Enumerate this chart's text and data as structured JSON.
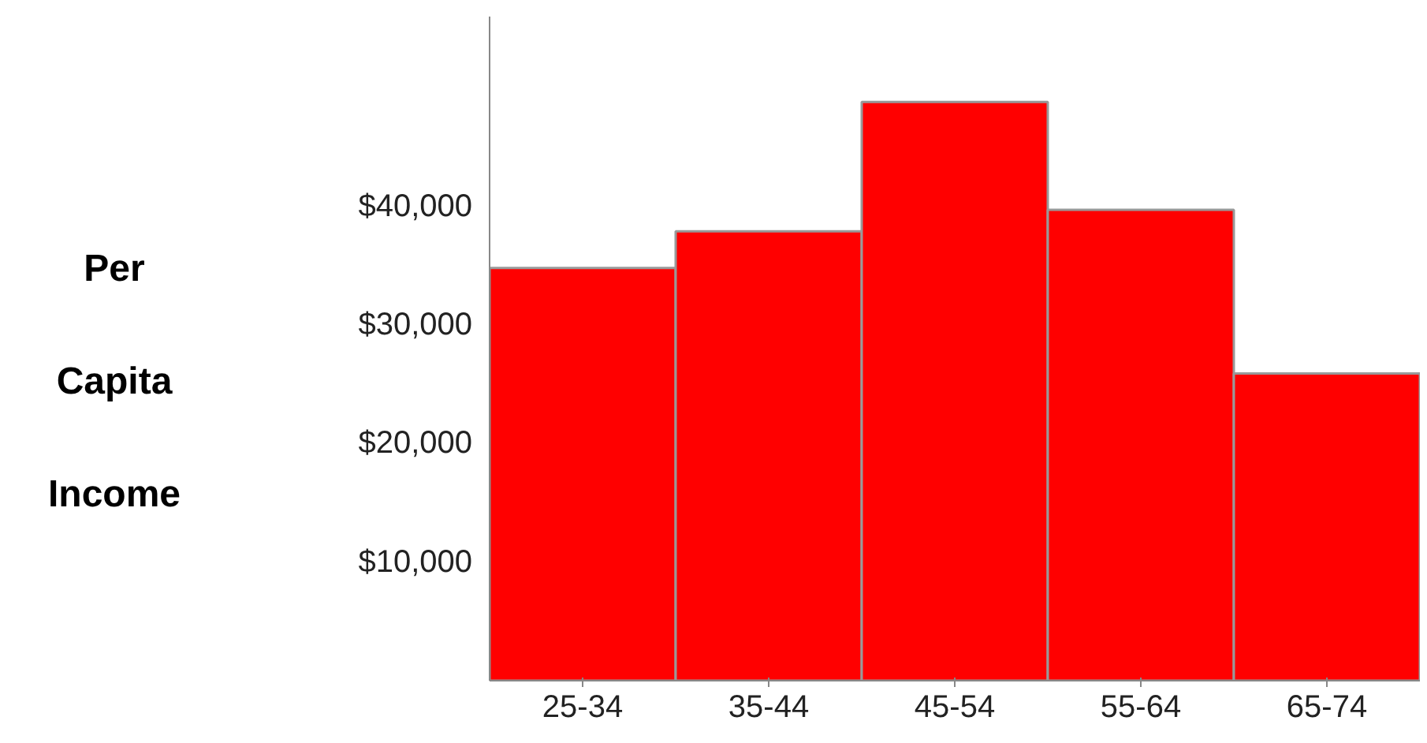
{
  "chart_data": {
    "type": "bar",
    "ylabel": "Per Capita Income",
    "categories": [
      "25-34",
      "35-44",
      "45-54",
      "55-64",
      "65-74"
    ],
    "values": [
      34800,
      37900,
      48800,
      39700,
      25900
    ],
    "color": "#ff0000",
    "ylim": [
      0,
      56000
    ],
    "yticks": [
      {
        "value": 10000,
        "label": "$10,000"
      },
      {
        "value": 20000,
        "label": "$20,000"
      },
      {
        "value": 30000,
        "label": "$30,000"
      },
      {
        "value": 40000,
        "label": "$40,000"
      }
    ],
    "grid": false
  }
}
